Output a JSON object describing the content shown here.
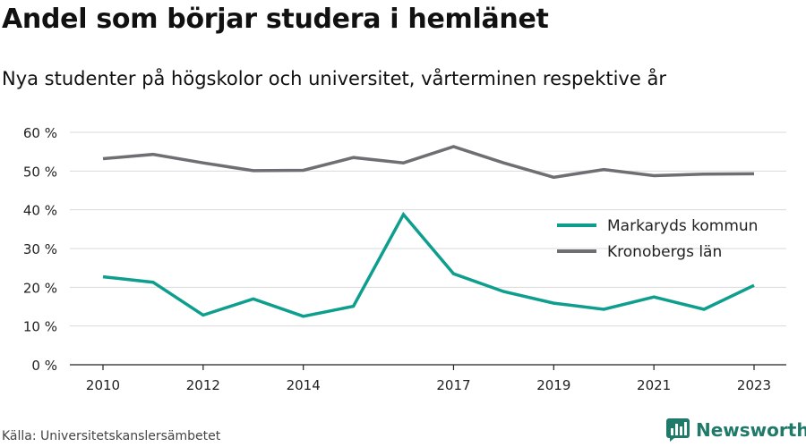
{
  "header": {
    "title": "Andel som börjar studera i hemlänet",
    "subtitle": "Nya studenter på högskolor och universitet, vårterminen respektive år"
  },
  "footer": {
    "source": "Källa: Universitetskanslersämbetet",
    "brand": "Newsworthy",
    "brand_icon": "newsworthy-logo-icon",
    "brand_color": "#1f7a6a"
  },
  "chart_data": {
    "type": "line",
    "x": [
      2010,
      2011,
      2012,
      2013,
      2014,
      2015,
      2016,
      2017,
      2018,
      2019,
      2020,
      2021,
      2022,
      2023
    ],
    "x_tick_labels": [
      "2010",
      "2012",
      "2014",
      "2017",
      "2019",
      "2021",
      "2023"
    ],
    "y_tick_labels": [
      "0 %",
      "10 %",
      "20 %",
      "30 %",
      "40 %",
      "50 %",
      "60 %"
    ],
    "ylim": [
      0,
      60
    ],
    "grid": true,
    "legend_position": "right",
    "series": [
      {
        "name": "Markaryds kommun",
        "color": "#0e9e8e",
        "values": [
          22.7,
          21.3,
          12.8,
          17.0,
          12.5,
          15.1,
          38.8,
          23.5,
          18.9,
          15.9,
          14.3,
          17.5,
          14.3,
          20.5
        ]
      },
      {
        "name": "Kronobergs län",
        "color": "#6e6e73",
        "values": [
          53.2,
          54.3,
          52.1,
          50.1,
          50.2,
          53.5,
          52.1,
          56.3,
          52.1,
          48.4,
          50.4,
          48.8,
          49.2,
          49.3
        ]
      }
    ]
  }
}
